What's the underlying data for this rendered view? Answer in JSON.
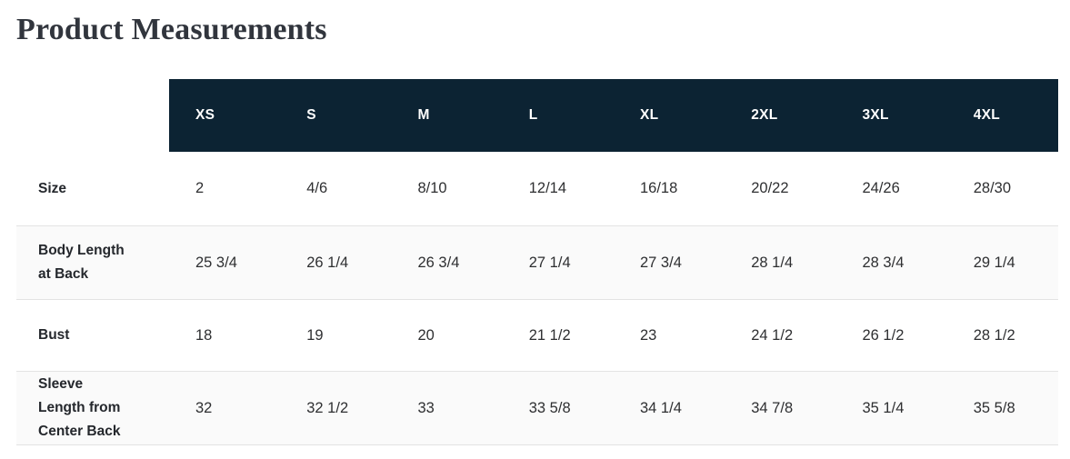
{
  "page": {
    "title": "Product Measurements"
  },
  "table": {
    "column_headers": [
      "XS",
      "S",
      "M",
      "L",
      "XL",
      "2XL",
      "3XL",
      "4XL"
    ],
    "rows": [
      {
        "label": "Size",
        "values": [
          "2",
          "4/6",
          "8/10",
          "12/14",
          "16/18",
          "20/22",
          "24/26",
          "28/30"
        ]
      },
      {
        "label": "Body Length at Back",
        "values": [
          "25 3/4",
          "26 1/4",
          "26 3/4",
          "27 1/4",
          "27 3/4",
          "28 1/4",
          "28 3/4",
          "29 1/4"
        ]
      },
      {
        "label": "Bust",
        "values": [
          "18",
          "19",
          "20",
          "21 1/2",
          "23",
          "24 1/2",
          "26 1/2",
          "28 1/2"
        ]
      },
      {
        "label": "Sleeve Length from Center Back",
        "values": [
          "32",
          "32 1/2",
          "33",
          "33 5/8",
          "34 1/4",
          "34 7/8",
          "35 1/4",
          "35 5/8"
        ]
      }
    ]
  },
  "colors": {
    "header_bg": "#0c2333",
    "header_text": "#ffffff",
    "stripe_bg": "#fafafa",
    "divider": "#e3e3e3",
    "title_text": "#31353d",
    "label_text": "#24272c",
    "body_text": "#2e2f31"
  }
}
